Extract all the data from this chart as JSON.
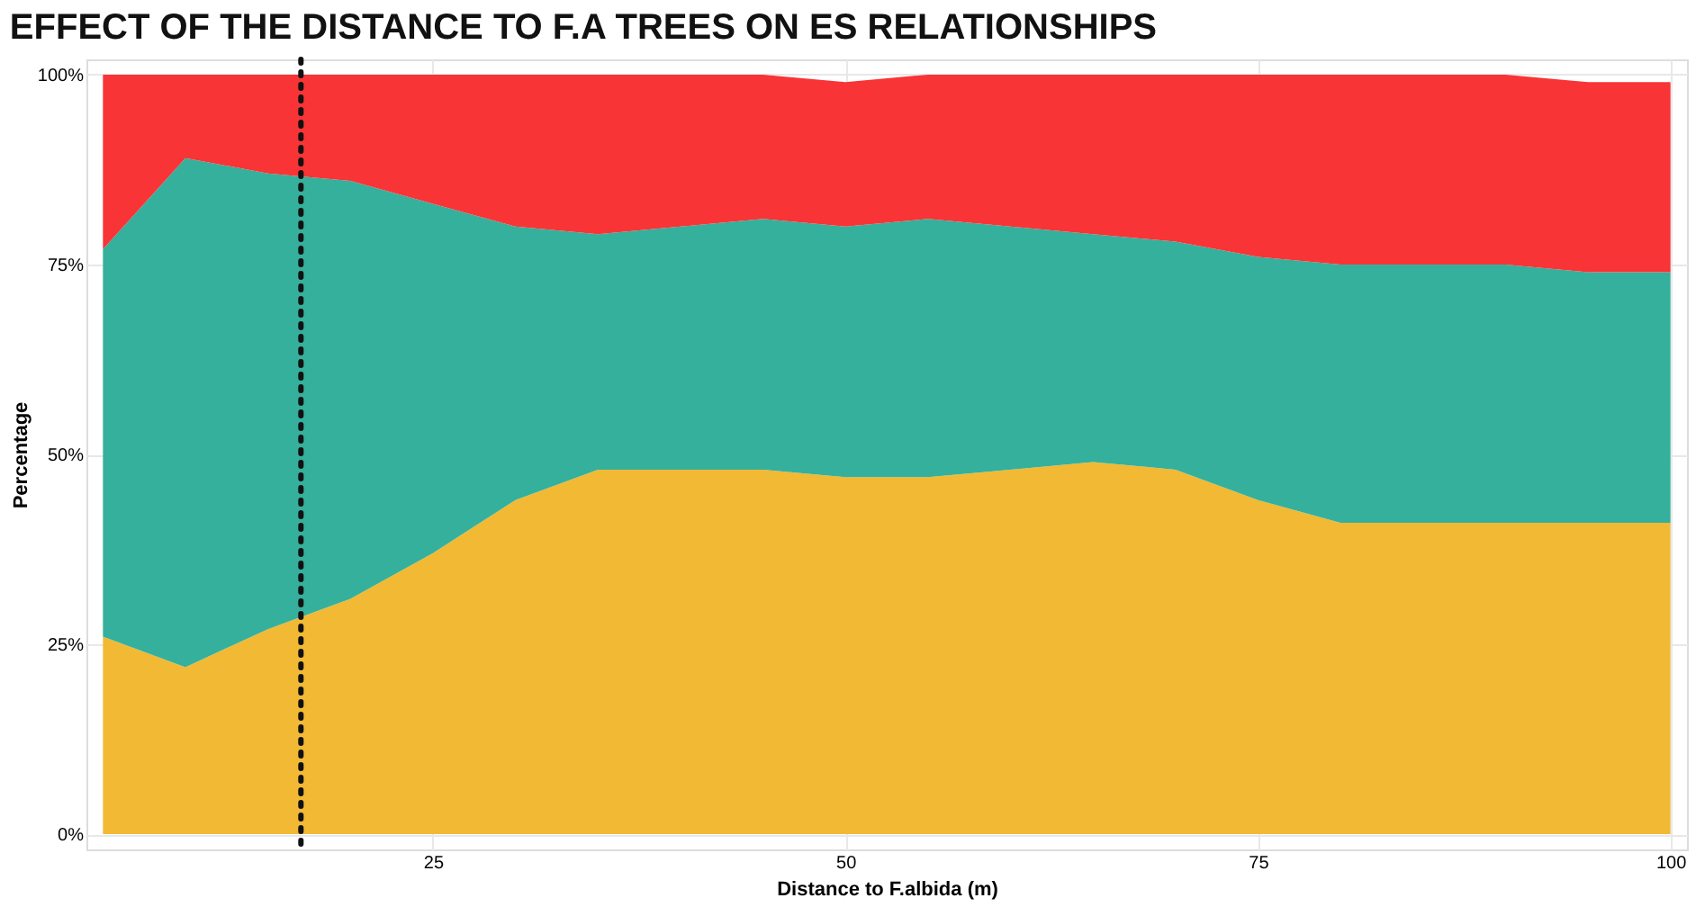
{
  "chart_data": {
    "type": "area",
    "stacked": true,
    "title": "EFFECT OF THE DISTANCE TO F.A TREES ON ES RELATIONSHIPS",
    "xlabel": "Distance to F.albida (m)",
    "ylabel": "Percentage",
    "x": [
      5,
      10,
      15,
      20,
      25,
      30,
      35,
      40,
      45,
      50,
      55,
      60,
      65,
      70,
      75,
      80,
      85,
      90,
      95,
      100
    ],
    "series": [
      {
        "color": "#f2b934",
        "values": [
          26,
          22,
          27,
          31,
          37,
          44,
          48,
          48,
          48,
          47,
          47,
          48,
          49,
          48,
          44,
          41,
          41,
          41,
          41,
          41
        ]
      },
      {
        "color": "#35b09c",
        "values": [
          51,
          67,
          60,
          55,
          46,
          36,
          31,
          32,
          33,
          33,
          34,
          32,
          30,
          30,
          32,
          34,
          34,
          34,
          33,
          33
        ]
      },
      {
        "color": "#f83436",
        "values": [
          23,
          11,
          13,
          14,
          17,
          20,
          21,
          20,
          19,
          19,
          19,
          20,
          21,
          22,
          24,
          25,
          25,
          25,
          25,
          25
        ]
      }
    ],
    "xlim": [
      4,
      101
    ],
    "ylim": [
      -2,
      102
    ],
    "xticks": [
      25,
      50,
      75,
      100
    ],
    "yticks": [
      {
        "value": 0,
        "label": "0%"
      },
      {
        "value": 25,
        "label": "25%"
      },
      {
        "value": 50,
        "label": "50%"
      },
      {
        "value": 75,
        "label": "75%"
      },
      {
        "value": 100,
        "label": "100%"
      }
    ],
    "ref_lines": [
      {
        "axis": "x",
        "value": 17,
        "color": "#111111",
        "line_style": "dotted"
      }
    ],
    "grid": true
  }
}
